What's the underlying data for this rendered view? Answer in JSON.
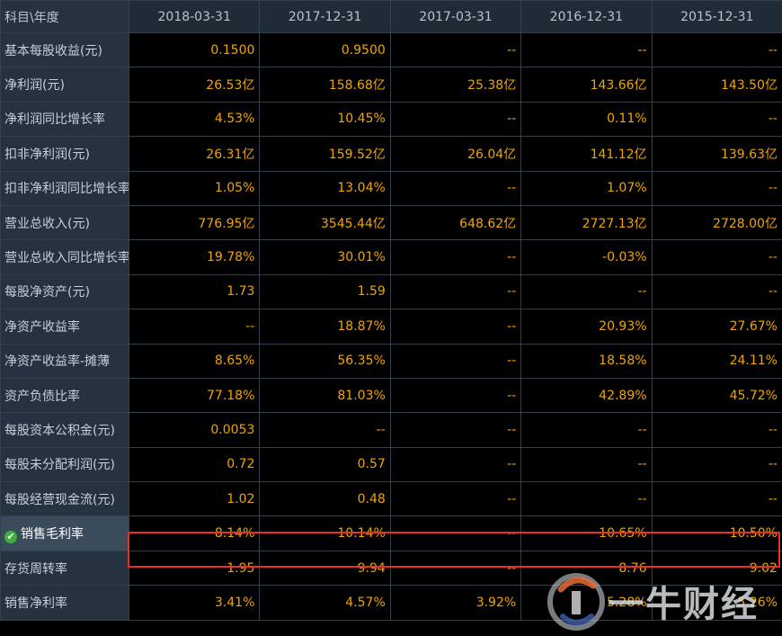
{
  "header": {
    "label": "科目\\年度",
    "dates": [
      "2018-03-31",
      "2017-12-31",
      "2017-03-31",
      "2016-12-31",
      "2015-12-31"
    ]
  },
  "rows": [
    {
      "label": "基本每股收益(元)",
      "values": [
        "0.1500",
        "0.9500",
        "--",
        "--",
        "--"
      ]
    },
    {
      "label": "净利润(元)",
      "values": [
        "26.53亿",
        "158.68亿",
        "25.38亿",
        "143.66亿",
        "143.50亿"
      ]
    },
    {
      "label": "净利润同比增长率",
      "values": [
        "4.53%",
        "10.45%",
        "--",
        "0.11%",
        "--"
      ]
    },
    {
      "label": "扣非净利润(元)",
      "values": [
        "26.31亿",
        "159.52亿",
        "26.04亿",
        "141.12亿",
        "139.63亿"
      ]
    },
    {
      "label": "扣非净利润同比增长率",
      "values": [
        "1.05%",
        "13.04%",
        "--",
        "1.07%",
        "--"
      ]
    },
    {
      "label": "营业总收入(元)",
      "values": [
        "776.95亿",
        "3545.44亿",
        "648.62亿",
        "2727.13亿",
        "2728.00亿"
      ]
    },
    {
      "label": "营业总收入同比增长率",
      "values": [
        "19.78%",
        "30.01%",
        "--",
        "-0.03%",
        "--"
      ]
    },
    {
      "label": "每股净资产(元)",
      "values": [
        "1.73",
        "1.59",
        "--",
        "--",
        "--"
      ]
    },
    {
      "label": "净资产收益率",
      "values": [
        "--",
        "18.87%",
        "--",
        "20.93%",
        "27.67%"
      ]
    },
    {
      "label": "净资产收益率-摊薄",
      "values": [
        "8.65%",
        "56.35%",
        "--",
        "18.58%",
        "24.11%"
      ]
    },
    {
      "label": "资产负债比率",
      "values": [
        "77.18%",
        "81.03%",
        "--",
        "42.89%",
        "45.72%"
      ]
    },
    {
      "label": "每股资本公积金(元)",
      "values": [
        "0.0053",
        "--",
        "--",
        "--",
        "--"
      ]
    },
    {
      "label": "每股未分配利润(元)",
      "values": [
        "0.72",
        "0.57",
        "--",
        "--",
        "--"
      ]
    },
    {
      "label": "每股经营现金流(元)",
      "values": [
        "1.02",
        "0.48",
        "--",
        "--",
        "--"
      ]
    },
    {
      "label": "销售毛利率",
      "values": [
        "8.14%",
        "10.14%",
        "--",
        "10.65%",
        "10.50%"
      ],
      "selected": true
    },
    {
      "label": "存货周转率",
      "values": [
        "1.95",
        "9.94",
        "--",
        "8.76",
        "9.02"
      ]
    },
    {
      "label": "销售净利率",
      "values": [
        "3.41%",
        "4.57%",
        "3.92%",
        "5.28%",
        "5.26%"
      ]
    }
  ],
  "colors": {
    "value": "#f0a500",
    "highlight_border": "#e5302b",
    "check": "#3fae3f"
  },
  "icons": {
    "selected_row": "check-circle-icon",
    "watermark_logo": "bull-logo-icon"
  },
  "watermark": {
    "text": "一牛财经"
  }
}
